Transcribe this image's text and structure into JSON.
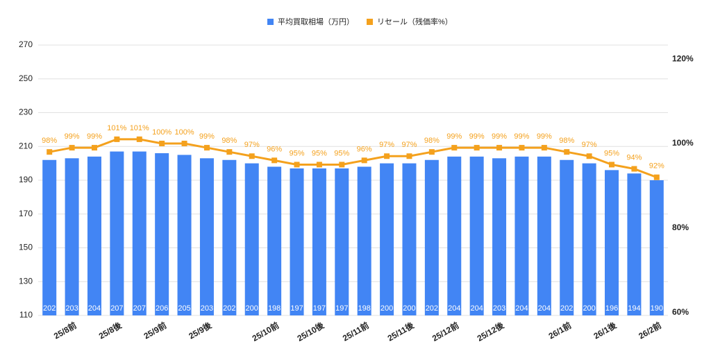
{
  "chart_data": {
    "type": "bar_line",
    "categories": [
      null,
      "25/8前",
      null,
      "25/8後",
      null,
      "25/9前",
      null,
      "25/9後",
      null,
      null,
      "25/10前",
      null,
      "25/10後",
      null,
      "25/11前",
      null,
      "25/11後",
      null,
      "25/12前",
      null,
      "25/12後",
      null,
      null,
      "26/1前",
      null,
      "26/1後",
      null,
      "26/2前"
    ],
    "series": [
      {
        "name": "平均買取相場（万円）",
        "color": "#4285f4",
        "type": "bar",
        "values": [
          202,
          203,
          204,
          207,
          207,
          206,
          205,
          203,
          202,
          200,
          198,
          197,
          197,
          197,
          198,
          200,
          200,
          202,
          204,
          204,
          203,
          204,
          204,
          202,
          200,
          196,
          194,
          190
        ]
      },
      {
        "name": "リセール（残価率%）",
        "color": "#f4a11d",
        "type": "line",
        "axis": "y2",
        "values": [
          98,
          99,
          99,
          101,
          101,
          100,
          100,
          99,
          98,
          97,
          96,
          95,
          95,
          95,
          96,
          97,
          97,
          98,
          99,
          99,
          99,
          99,
          99,
          98,
          97,
          95,
          94,
          92
        ],
        "value_labels": [
          "98%",
          "99%",
          "99%",
          "101%",
          "101%",
          "100%",
          "100%",
          "99%",
          "98%",
          "97%",
          "96%",
          "95%",
          "95%",
          "95%",
          "96%",
          "97%",
          "97%",
          "98%",
          "99%",
          "99%",
          "99%",
          "99%",
          "99%",
          "98%",
          "97%",
          "95%",
          "94%",
          "92%"
        ]
      }
    ],
    "ylim": [
      110,
      270
    ],
    "yticks": [
      110,
      130,
      150,
      170,
      190,
      210,
      230,
      250,
      270
    ],
    "y2lim": [
      59.3,
      123.3
    ],
    "y2ticks": [
      {
        "value": 60,
        "label": "60%"
      },
      {
        "value": 80,
        "label": "80%"
      },
      {
        "value": 100,
        "label": "100%"
      },
      {
        "value": 120,
        "label": "120%"
      }
    ],
    "grid": true,
    "legend": "top"
  }
}
